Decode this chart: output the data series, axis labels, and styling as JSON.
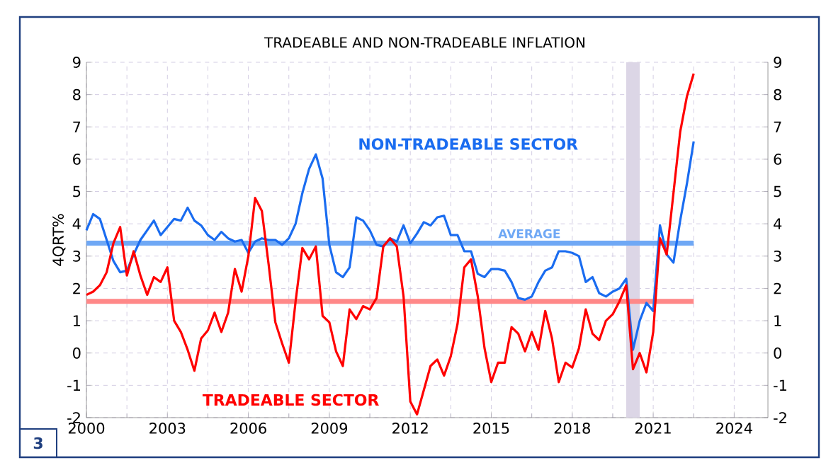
{
  "chart_data": {
    "type": "line",
    "title": "TRADEABLE AND NON-TRADEABLE INFLATION",
    "ylabel": "4QRT%",
    "x": [
      2000,
      2000.25,
      2000.5,
      2000.75,
      2001,
      2001.25,
      2001.5,
      2001.75,
      2002,
      2002.25,
      2002.5,
      2002.75,
      2003,
      2003.25,
      2003.5,
      2003.75,
      2004,
      2004.25,
      2004.5,
      2004.75,
      2005,
      2005.25,
      2005.5,
      2005.75,
      2006,
      2006.25,
      2006.5,
      2006.75,
      2007,
      2007.25,
      2007.5,
      2007.75,
      2008,
      2008.25,
      2008.5,
      2008.75,
      2009,
      2009.25,
      2009.5,
      2009.75,
      2010,
      2010.25,
      2010.5,
      2010.75,
      2011,
      2011.25,
      2011.5,
      2011.75,
      2012,
      2012.25,
      2012.5,
      2012.75,
      2013,
      2013.25,
      2013.5,
      2013.75,
      2014,
      2014.25,
      2014.5,
      2014.75,
      2015,
      2015.25,
      2015.5,
      2015.75,
      2016,
      2016.25,
      2016.5,
      2016.75,
      2017,
      2017.25,
      2017.5,
      2017.75,
      2018,
      2018.25,
      2018.5,
      2018.75,
      2019,
      2019.25,
      2019.5,
      2019.75,
      2020,
      2020.25,
      2020.5,
      2020.75,
      2021,
      2021.25,
      2021.5,
      2021.75,
      2022,
      2022.25,
      2022.5
    ],
    "series": [
      {
        "name": "NON-TRADEABLE SECTOR",
        "color": "#1a6cf0",
        "values": [
          3.8,
          4.3,
          4.15,
          3.5,
          2.85,
          2.5,
          2.55,
          3.05,
          3.5,
          3.8,
          4.1,
          3.65,
          3.9,
          4.15,
          4.1,
          4.5,
          4.1,
          3.95,
          3.65,
          3.5,
          3.75,
          3.55,
          3.45,
          3.5,
          3.1,
          3.45,
          3.55,
          3.5,
          3.5,
          3.35,
          3.55,
          4.0,
          4.95,
          5.7,
          6.15,
          5.4,
          3.35,
          2.5,
          2.35,
          2.65,
          4.2,
          4.1,
          3.8,
          3.35,
          3.3,
          3.55,
          3.45,
          3.95,
          3.4,
          3.7,
          4.05,
          3.95,
          4.2,
          4.25,
          3.65,
          3.65,
          3.15,
          3.15,
          2.45,
          2.35,
          2.6,
          2.6,
          2.55,
          2.2,
          1.7,
          1.65,
          1.75,
          2.2,
          2.55,
          2.65,
          3.15,
          3.15,
          3.1,
          3.0,
          2.2,
          2.35,
          1.85,
          1.75,
          1.9,
          2.0,
          2.3,
          0.1,
          1.0,
          1.55,
          1.3,
          3.95,
          3.05,
          2.8,
          4.1,
          5.25,
          6.55
        ]
      },
      {
        "name": "TRADEABLE SECTOR",
        "color": "#ff0000",
        "values": [
          1.8,
          1.9,
          2.1,
          2.5,
          3.4,
          3.9,
          2.4,
          3.15,
          2.4,
          1.8,
          2.35,
          2.2,
          2.65,
          1.0,
          0.65,
          0.1,
          -0.55,
          0.45,
          0.7,
          1.25,
          0.65,
          1.25,
          2.6,
          1.9,
          3.0,
          4.8,
          4.4,
          2.75,
          0.95,
          0.3,
          -0.3,
          1.6,
          3.25,
          2.9,
          3.3,
          1.15,
          0.95,
          0.05,
          -0.4,
          1.35,
          1.05,
          1.45,
          1.35,
          1.7,
          3.3,
          3.55,
          3.3,
          1.75,
          -1.5,
          -1.9,
          -1.15,
          -0.4,
          -0.2,
          -0.7,
          -0.1,
          0.9,
          2.65,
          2.9,
          1.75,
          0.15,
          -0.9,
          -0.3,
          -0.3,
          0.8,
          0.6,
          0.05,
          0.65,
          0.1,
          1.3,
          0.45,
          -0.9,
          -0.3,
          -0.45,
          0.15,
          1.35,
          0.6,
          0.4,
          1.0,
          1.2,
          1.6,
          2.1,
          -0.5,
          0.0,
          -0.6,
          0.65,
          3.55,
          3.05,
          4.95,
          6.85,
          7.95,
          8.65
        ]
      }
    ],
    "xlim": [
      2000,
      2025.25
    ],
    "xticks": [
      2000,
      2003,
      2006,
      2009,
      2012,
      2015,
      2018,
      2021,
      2024
    ],
    "ylim": [
      -2,
      9
    ],
    "yticks": [
      -2,
      -1,
      0,
      1,
      2,
      3,
      4,
      5,
      6,
      7,
      8,
      9
    ],
    "y2lim": [
      -2,
      9
    ],
    "y2ticks": [
      -2,
      -1,
      0,
      1,
      2,
      3,
      4,
      5,
      6,
      7,
      8,
      9
    ],
    "ref_lines": [
      {
        "axis": "y",
        "value": 3.4,
        "label": "AVERAGE",
        "color": "#6fa8f5"
      },
      {
        "axis": "y",
        "value": 1.6,
        "color": "#ff8888"
      }
    ],
    "bands": [
      {
        "axis": "x",
        "from": 2020,
        "to": 2020.5,
        "color": "#dcd6e6"
      }
    ],
    "annotations": [
      "3"
    ],
    "grid": true,
    "legend": false,
    "marker": "none",
    "line_style": "solid"
  }
}
